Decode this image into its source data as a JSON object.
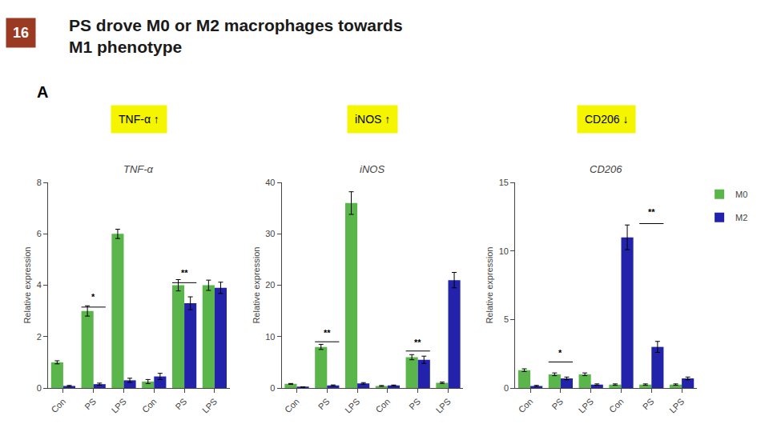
{
  "title": "PS drove M0 or M2 macrophages towards\nM1 phenotype",
  "annotations": [
    {
      "text": "16",
      "color": "#9b3a22"
    },
    {
      "text": "A"
    }
  ],
  "chart_data": [
    {
      "type": "bar",
      "title": "TNF-α",
      "ylabel": "Relative expression",
      "categories": [
        "Con",
        "PS",
        "LPS",
        "Con",
        "PS",
        "LPS"
      ],
      "series": [
        {
          "name": "M0",
          "color": "#5ab54b",
          "values": [
            1.0,
            3.0,
            6.0,
            0.25,
            4.0,
            4.0
          ],
          "errors": [
            0.06,
            0.2,
            0.18,
            0.08,
            0.22,
            0.2
          ]
        },
        {
          "name": "M2",
          "color": "#2222aa",
          "values": [
            0.08,
            0.15,
            0.3,
            0.45,
            3.3,
            3.9
          ],
          "errors": [
            0.02,
            0.04,
            0.08,
            0.12,
            0.25,
            0.22
          ]
        }
      ],
      "ylim": [
        0,
        8
      ],
      "yticks": [
        0,
        2,
        4,
        6,
        8
      ],
      "grid": false,
      "annotations": [
        {
          "text": "TNF-α ↑",
          "color": "#f5f500"
        },
        {
          "text": "*",
          "x": 1,
          "line_y": 3.15,
          "text_y": 3.3
        },
        {
          "text": "**",
          "x": 4,
          "line_y": 4.1,
          "text_y": 4.25
        }
      ]
    },
    {
      "type": "bar",
      "title": "iNOS",
      "ylabel": "Relative expression",
      "categories": [
        "Con",
        "PS",
        "LPS",
        "Con",
        "PS",
        "LPS"
      ],
      "series": [
        {
          "name": "M0",
          "color": "#5ab54b",
          "values": [
            0.8,
            8.0,
            36.0,
            0.4,
            6.0,
            1.0
          ],
          "errors": [
            0.08,
            0.5,
            2.2,
            0.08,
            0.5,
            0.15
          ]
        },
        {
          "name": "M2",
          "color": "#2222aa",
          "values": [
            0.2,
            0.5,
            0.9,
            0.5,
            5.5,
            21.0
          ],
          "errors": [
            0.04,
            0.1,
            0.15,
            0.08,
            0.7,
            1.5
          ]
        }
      ],
      "ylim": [
        0,
        40
      ],
      "yticks": [
        0,
        10,
        20,
        30,
        40
      ],
      "grid": false,
      "annotations": [
        {
          "text": "iNOS ↑",
          "color": "#f5f500"
        },
        {
          "text": "**",
          "x": 1,
          "line_y": 9.0,
          "text_y": 9.5
        },
        {
          "text": "**",
          "x": 4,
          "line_y": 7.2,
          "text_y": 7.7
        }
      ]
    },
    {
      "type": "bar",
      "title": "CD206",
      "ylabel": "Relative expression",
      "categories": [
        "Con",
        "PS",
        "LPS",
        "Con",
        "PS",
        "LPS"
      ],
      "series": [
        {
          "name": "M0",
          "color": "#5ab54b",
          "values": [
            1.3,
            1.0,
            1.0,
            0.25,
            0.25,
            0.25
          ],
          "errors": [
            0.1,
            0.1,
            0.1,
            0.05,
            0.05,
            0.05
          ]
        },
        {
          "name": "M2",
          "color": "#2222aa",
          "values": [
            0.15,
            0.7,
            0.25,
            11.0,
            3.0,
            0.7
          ],
          "errors": [
            0.04,
            0.1,
            0.05,
            0.9,
            0.4,
            0.1
          ]
        }
      ],
      "ylim": [
        0,
        15
      ],
      "yticks": [
        0,
        5,
        10,
        15
      ],
      "grid": false,
      "legend": "upper right",
      "annotations": [
        {
          "text": "CD206 ↓",
          "color": "#f5f500"
        },
        {
          "text": "*",
          "x": 1,
          "line_y": 1.9,
          "text_y": 2.1
        },
        {
          "text": "**",
          "x": 4,
          "line_y": 12.0,
          "text_y": 12.4
        }
      ]
    }
  ]
}
